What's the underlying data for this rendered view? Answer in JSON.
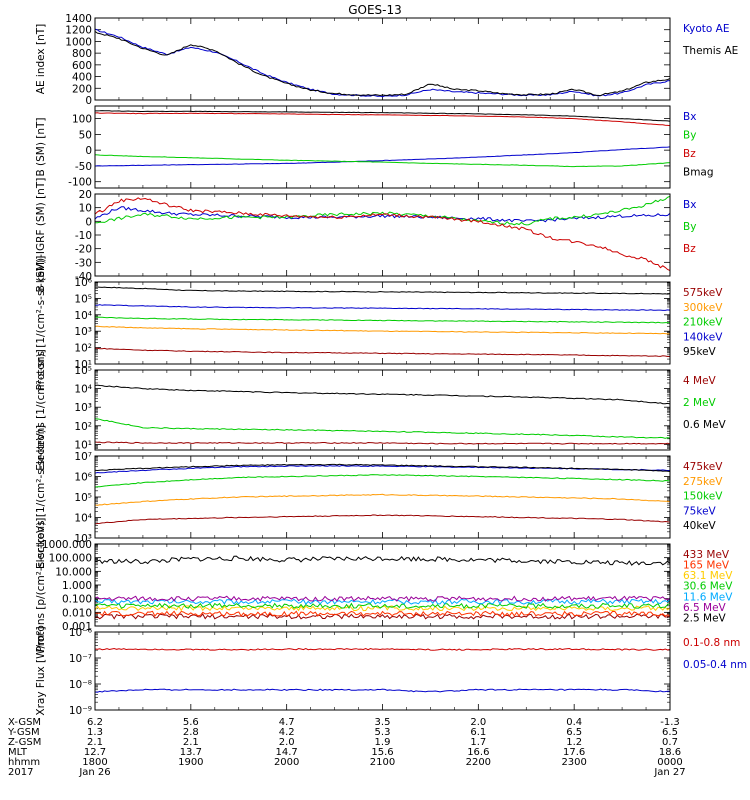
{
  "title": "GOES-13",
  "chart_data": [
    {
      "type": "line",
      "panel": "ae",
      "ylabel": "AE index [nT]",
      "ylim": [
        0,
        1400
      ],
      "yticks": [
        0,
        200,
        400,
        600,
        800,
        1000,
        1200,
        1400
      ],
      "yticklabels": [
        "0",
        "200",
        "400",
        "600",
        "800",
        "1000",
        "1200",
        "1400"
      ],
      "x_hours": [
        0,
        0.25,
        0.5,
        0.75,
        1.0,
        1.25,
        1.5,
        1.75,
        2.0,
        2.25,
        2.5,
        2.75,
        3.0,
        3.25,
        3.5,
        3.75,
        4.0,
        4.25,
        4.5,
        4.75,
        5.0,
        5.25,
        5.5,
        5.75,
        6.0
      ],
      "series": [
        {
          "name": "Kyoto AE",
          "color": "#0000cc",
          "values": [
            1200,
            1080,
            900,
            780,
            900,
            820,
            650,
            450,
            300,
            180,
            100,
            80,
            60,
            90,
            180,
            140,
            120,
            100,
            80,
            90,
            150,
            70,
            120,
            260,
            330
          ]
        },
        {
          "name": "Themis AE",
          "color": "#000000",
          "values": [
            1160,
            1050,
            880,
            760,
            950,
            850,
            620,
            420,
            280,
            170,
            110,
            90,
            80,
            100,
            280,
            180,
            160,
            110,
            90,
            100,
            180,
            80,
            150,
            300,
            360
          ]
        }
      ]
    },
    {
      "type": "line",
      "panel": "b",
      "ylabel": "B (SM) [nT]",
      "ylim": [
        -120,
        140
      ],
      "yticks": [
        -100,
        -50,
        0,
        50,
        100
      ],
      "yticklabels": [
        "-100",
        "-50",
        "0",
        "50",
        "100"
      ],
      "x_hours": [
        0,
        0.5,
        1,
        1.5,
        2,
        2.5,
        3,
        3.5,
        4,
        4.5,
        5,
        5.5,
        6
      ],
      "series": [
        {
          "name": "Bx",
          "color": "#0000cc",
          "values": [
            -50,
            -48,
            -46,
            -44,
            -42,
            -38,
            -33,
            -28,
            -22,
            -15,
            -8,
            2,
            10
          ]
        },
        {
          "name": "By",
          "color": "#00cc00",
          "values": [
            -15,
            -20,
            -24,
            -28,
            -32,
            -35,
            -38,
            -42,
            -45,
            -48,
            -52,
            -50,
            -40
          ]
        },
        {
          "name": "Bz",
          "color": "#cc0000",
          "values": [
            118,
            116,
            117,
            116,
            115,
            113,
            112,
            110,
            108,
            105,
            100,
            90,
            78
          ]
        },
        {
          "name": "Bmag",
          "color": "#000000",
          "values": [
            125,
            123,
            123,
            122,
            121,
            120,
            119,
            117,
            115,
            112,
            108,
            100,
            92
          ]
        }
      ]
    },
    {
      "type": "line",
      "panel": "bdiff",
      "ylabel": "B (SM)-IGRF (SM) [nT]",
      "ylim": [
        -40,
        20
      ],
      "yticks": [
        -40,
        -30,
        -20,
        -10,
        0,
        10,
        20
      ],
      "yticklabels": [
        "-40",
        "-30",
        "-20",
        "-10",
        "0",
        "10",
        "20"
      ],
      "x_hours": [
        0,
        0.25,
        0.5,
        0.75,
        1.0,
        1.5,
        2.0,
        2.5,
        3.0,
        3.5,
        4.0,
        4.25,
        4.5,
        4.75,
        5.0,
        5.25,
        5.5,
        5.75,
        6.0
      ],
      "series": [
        {
          "name": "Bx",
          "color": "#0000cc",
          "values": [
            2,
            10,
            8,
            6,
            5,
            4,
            3,
            3,
            4,
            3,
            2,
            1,
            0,
            1,
            2,
            3,
            4,
            4,
            5
          ]
        },
        {
          "name": "By",
          "color": "#00cc00",
          "values": [
            -1,
            2,
            5,
            4,
            2,
            3,
            3,
            5,
            6,
            4,
            0,
            -1,
            -2,
            2,
            3,
            5,
            8,
            12,
            18
          ]
        },
        {
          "name": "Bz",
          "color": "#cc0000",
          "values": [
            5,
            15,
            17,
            12,
            8,
            6,
            4,
            3,
            5,
            3,
            0,
            -3,
            -6,
            -12,
            -15,
            -18,
            -24,
            -28,
            -36
          ]
        }
      ]
    },
    {
      "type": "line",
      "panel": "protons_low",
      "ylabel": "Protons [1/(cm²-s-sr-keV)]",
      "yscale": "log",
      "ylim": [
        10,
        1000000
      ],
      "yticklabels": [
        "10¹",
        "10²",
        "10³",
        "10⁴",
        "10⁵",
        "10⁶"
      ],
      "x_hours": [
        0,
        0.5,
        1,
        1.5,
        2,
        2.5,
        3,
        3.5,
        4,
        4.5,
        5,
        5.5,
        6
      ],
      "series": [
        {
          "name": "575keV",
          "color": "#990000",
          "values": [
            90,
            70,
            60,
            55,
            50,
            48,
            45,
            42,
            40,
            38,
            35,
            32,
            30
          ]
        },
        {
          "name": "300keV",
          "color": "#ff9900",
          "values": [
            2000,
            1600,
            1400,
            1300,
            1200,
            1100,
            1000,
            950,
            900,
            850,
            800,
            760,
            700
          ]
        },
        {
          "name": "210keV",
          "color": "#00cc00",
          "values": [
            7000,
            6000,
            5500,
            5200,
            5000,
            4800,
            4500,
            4300,
            4100,
            3900,
            3700,
            3500,
            3300
          ]
        },
        {
          "name": "140keV",
          "color": "#0000cc",
          "values": [
            40000,
            35000,
            30000,
            28000,
            27000,
            26000,
            25000,
            24000,
            23000,
            22000,
            21000,
            20000,
            19000
          ]
        },
        {
          "name": "95keV",
          "color": "#000000",
          "values": [
            500000,
            400000,
            300000,
            280000,
            270000,
            260000,
            250000,
            240000,
            230000,
            220000,
            210000,
            200000,
            190000
          ]
        }
      ]
    },
    {
      "type": "line",
      "panel": "electrons_high",
      "ylabel": "Electrons [1/(cm²-s-sr)]",
      "yscale": "log",
      "ylim": [
        5,
        100000
      ],
      "yticklabels": [
        "10¹",
        "10²",
        "10³",
        "10⁴",
        "10⁵"
      ],
      "x_hours": [
        0,
        0.5,
        1,
        1.5,
        2,
        2.5,
        3,
        3.5,
        4,
        4.5,
        5,
        5.5,
        6
      ],
      "series": [
        {
          "name": "4 MeV",
          "color": "#990000",
          "values": [
            13,
            12,
            12,
            12,
            12,
            12,
            12,
            11,
            11,
            11,
            11,
            11,
            11
          ]
        },
        {
          "name": "2 MeV",
          "color": "#00cc00",
          "values": [
            250,
            80,
            70,
            65,
            60,
            55,
            50,
            45,
            40,
            35,
            30,
            25,
            22
          ]
        },
        {
          "name": "0.6 MeV",
          "color": "#000000",
          "values": [
            15000,
            10000,
            8000,
            7000,
            6000,
            5500,
            5000,
            4500,
            4000,
            3500,
            3000,
            2500,
            1500
          ]
        }
      ]
    },
    {
      "type": "line",
      "panel": "electrons_low",
      "ylabel": "Electrons [1/(cm²-s-sr-keV)]",
      "yscale": "log",
      "ylim": [
        1000,
        10000000
      ],
      "yticklabels": [
        "10³",
        "10⁴",
        "10⁵",
        "10⁶",
        "10⁷"
      ],
      "x_hours": [
        0,
        0.5,
        1,
        1.5,
        2,
        2.5,
        3,
        3.5,
        4,
        4.5,
        5,
        5.5,
        6
      ],
      "series": [
        {
          "name": "475keV",
          "color": "#990000",
          "values": [
            5000,
            8000,
            9000,
            10000,
            11000,
            12000,
            13000,
            12000,
            11000,
            10000,
            9000,
            8000,
            6000
          ]
        },
        {
          "name": "275keV",
          "color": "#ff9900",
          "values": [
            40000,
            60000,
            80000,
            100000,
            110000,
            120000,
            130000,
            120000,
            110000,
            100000,
            90000,
            80000,
            60000
          ]
        },
        {
          "name": "150keV",
          "color": "#00cc00",
          "values": [
            300000,
            500000,
            700000,
            900000,
            1000000,
            1100000,
            1200000,
            1100000,
            1000000,
            900000,
            800000,
            700000,
            600000
          ]
        },
        {
          "name": "75keV",
          "color": "#0000cc",
          "values": [
            1500000,
            2000000,
            2500000,
            3000000,
            3200000,
            3300000,
            3200000,
            3000000,
            2800000,
            2600000,
            2400000,
            2200000,
            2000000
          ]
        },
        {
          "name": "40keV",
          "color": "#000000",
          "values": [
            2000000,
            2500000,
            3000000,
            3500000,
            3700000,
            3800000,
            3600000,
            3300000,
            3000000,
            2800000,
            2500000,
            2200000,
            1800000
          ]
        }
      ]
    },
    {
      "type": "line",
      "panel": "protons_high",
      "ylabel": "Protons [p/(cm²-s-sr-keV)]",
      "yscale": "log",
      "ylim": [
        0.001,
        1000
      ],
      "yticklabels": [
        "0.001",
        "0.010",
        "0.100",
        "1.000",
        "10.000",
        "100.000",
        "1000.000"
      ],
      "x_hours": [
        0,
        0.5,
        1,
        1.5,
        2,
        2.5,
        3,
        3.5,
        4,
        4.5,
        5,
        5.5,
        6
      ],
      "series": [
        {
          "name": "433 MeV",
          "color": "#990000",
          "values": [
            0.005,
            0.005,
            0.005,
            0.005,
            0.005,
            0.005,
            0.005,
            0.005,
            0.005,
            0.005,
            0.005,
            0.005,
            0.005
          ]
        },
        {
          "name": "165 MeV",
          "color": "#ff3300",
          "values": [
            0.008,
            0.008,
            0.008,
            0.008,
            0.008,
            0.008,
            0.008,
            0.008,
            0.008,
            0.008,
            0.008,
            0.008,
            0.008
          ]
        },
        {
          "name": "63.1 MeV",
          "color": "#ffcc00",
          "values": [
            0.02,
            0.02,
            0.02,
            0.02,
            0.02,
            0.02,
            0.02,
            0.02,
            0.02,
            0.02,
            0.02,
            0.02,
            0.02
          ]
        },
        {
          "name": "30.6 MeV",
          "color": "#00cc00",
          "values": [
            0.03,
            0.03,
            0.03,
            0.03,
            0.03,
            0.03,
            0.03,
            0.03,
            0.03,
            0.03,
            0.03,
            0.03,
            0.03
          ]
        },
        {
          "name": "11.6 MeV",
          "color": "#00aaff",
          "values": [
            0.06,
            0.06,
            0.06,
            0.06,
            0.06,
            0.06,
            0.06,
            0.06,
            0.06,
            0.06,
            0.06,
            0.06,
            0.06
          ]
        },
        {
          "name": "6.5 MeV",
          "color": "#990099",
          "values": [
            0.1,
            0.1,
            0.1,
            0.1,
            0.1,
            0.1,
            0.1,
            0.1,
            0.1,
            0.1,
            0.1,
            0.1,
            0.1
          ]
        },
        {
          "name": "2.5 MeV",
          "color": "#000000",
          "values": [
            60,
            50,
            80,
            90,
            70,
            80,
            90,
            80,
            70,
            60,
            50,
            40,
            45
          ]
        }
      ]
    },
    {
      "type": "line",
      "panel": "xray",
      "ylabel": "Xray Flux [W/m²]",
      "yscale": "log",
      "ylim": [
        1e-09,
        1e-06
      ],
      "yticklabels": [
        "10⁻⁹",
        "10⁻⁸",
        "10⁻⁷",
        "10⁻⁶"
      ],
      "x_hours": [
        0,
        0.5,
        1,
        1.5,
        2,
        2.5,
        3,
        3.5,
        4,
        4.5,
        5,
        5.5,
        6
      ],
      "series": [
        {
          "name": "0.1-0.8 nm",
          "color": "#cc0000",
          "values": [
            2.2e-07,
            2.2e-07,
            2.1e-07,
            2.1e-07,
            2.2e-07,
            2.2e-07,
            2.2e-07,
            2.1e-07,
            2.1e-07,
            2.2e-07,
            2.2e-07,
            2.1e-07,
            2.1e-07
          ]
        },
        {
          "name": "0.05-0.4 nm",
          "color": "#0000cc",
          "values": [
            5e-09,
            6e-09,
            6e-09,
            6e-09,
            6e-09,
            6e-09,
            6e-09,
            5e-09,
            6e-09,
            6e-09,
            6e-09,
            6e-09,
            5e-09
          ]
        }
      ]
    }
  ],
  "ephemeris": {
    "row_labels": [
      "X-GSM",
      "Y-GSM",
      "Z-GSM",
      "MLT",
      "hhmm",
      "2017"
    ],
    "columns": [
      {
        "values": [
          "6.2",
          "1.3",
          "2.1",
          "12.7",
          "1800",
          "Jan 26"
        ]
      },
      {
        "values": [
          "5.6",
          "2.8",
          "2.1",
          "13.7",
          "1900",
          ""
        ]
      },
      {
        "values": [
          "4.7",
          "4.2",
          "2.0",
          "14.7",
          "2000",
          ""
        ]
      },
      {
        "values": [
          "3.5",
          "5.3",
          "1.9",
          "15.6",
          "2100",
          ""
        ]
      },
      {
        "values": [
          "2.0",
          "6.1",
          "1.7",
          "16.6",
          "2200",
          ""
        ]
      },
      {
        "values": [
          "0.4",
          "6.5",
          "1.2",
          "17.6",
          "2300",
          ""
        ]
      },
      {
        "values": [
          "-1.3",
          "6.5",
          "0.7",
          "18.6",
          "0000",
          "Jan 27"
        ]
      }
    ]
  }
}
